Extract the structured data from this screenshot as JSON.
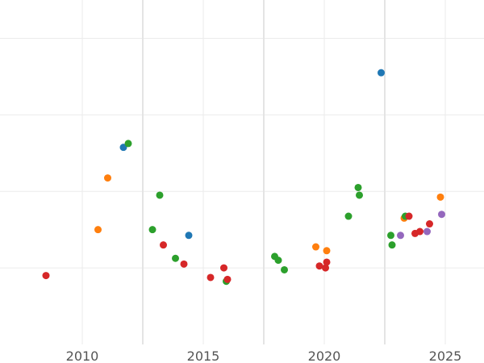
{
  "chart_data": {
    "type": "scatter",
    "title": "",
    "xlabel": "",
    "ylabel": "",
    "xlim": [
      2006.6,
      2026.6
    ],
    "ylim": [
      0,
      9
    ],
    "grid": true,
    "x_ticks": [
      2010,
      2015,
      2020,
      2025
    ],
    "x_tick_labels": [
      "2010",
      "2015",
      "2020",
      "2025"
    ],
    "y_gridlines": [
      2,
      4,
      6,
      8
    ],
    "x_minor_gridlines": [
      2012.5,
      2017.5,
      2022.5
    ],
    "series": [
      {
        "color": "#1f77b4",
        "points": [
          [
            2011.7,
            5.15
          ],
          [
            2014.4,
            2.85
          ],
          [
            2022.35,
            7.1
          ]
        ]
      },
      {
        "color": "#ff7f0e",
        "points": [
          [
            2010.65,
            3.0
          ],
          [
            2011.05,
            4.35
          ],
          [
            2019.65,
            2.55
          ],
          [
            2020.1,
            2.45
          ],
          [
            2023.3,
            3.3
          ],
          [
            2024.8,
            3.85
          ]
        ]
      },
      {
        "color": "#2ca02c",
        "points": [
          [
            2011.9,
            5.25
          ],
          [
            2012.9,
            3.0
          ],
          [
            2013.2,
            3.9
          ],
          [
            2013.85,
            2.25
          ],
          [
            2015.95,
            1.65
          ],
          [
            2017.95,
            2.3
          ],
          [
            2018.1,
            2.2
          ],
          [
            2018.35,
            1.95
          ],
          [
            2021.0,
            3.35
          ],
          [
            2021.4,
            4.1
          ],
          [
            2021.45,
            3.9
          ],
          [
            2022.75,
            2.85
          ],
          [
            2022.8,
            2.6
          ],
          [
            2023.35,
            3.35
          ]
        ]
      },
      {
        "color": "#d62728",
        "points": [
          [
            2008.5,
            1.8
          ],
          [
            2013.35,
            2.6
          ],
          [
            2014.2,
            2.1
          ],
          [
            2015.3,
            1.75
          ],
          [
            2015.85,
            2.0
          ],
          [
            2016.0,
            1.7
          ],
          [
            2019.8,
            2.05
          ],
          [
            2020.05,
            2.0
          ],
          [
            2020.1,
            2.15
          ],
          [
            2023.5,
            3.35
          ],
          [
            2023.75,
            2.9
          ],
          [
            2023.95,
            2.95
          ],
          [
            2024.35,
            3.15
          ]
        ]
      },
      {
        "color": "#9467bd",
        "points": [
          [
            2023.15,
            2.85
          ],
          [
            2024.25,
            2.95
          ],
          [
            2024.85,
            3.4
          ]
        ]
      }
    ]
  }
}
